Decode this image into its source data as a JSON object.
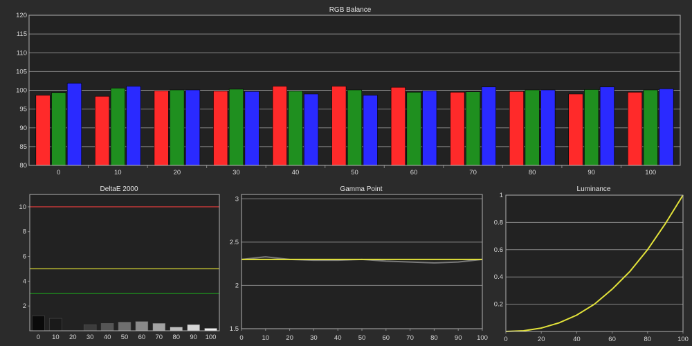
{
  "chart_data": [
    {
      "type": "bar",
      "title": "RGB Balance",
      "categories": [
        "0",
        "10",
        "20",
        "30",
        "40",
        "50",
        "60",
        "70",
        "80",
        "90",
        "100"
      ],
      "ylim": [
        80,
        120
      ],
      "yticks": [
        "80",
        "85",
        "90",
        "95",
        "100",
        "105",
        "110",
        "115",
        "120"
      ],
      "grid": true,
      "series": [
        {
          "color": "#ff2a2a",
          "values": [
            98.7,
            98.4,
            99.9,
            99.8,
            101.1,
            101.1,
            100.8,
            99.5,
            99.7,
            99.0,
            99.5
          ]
        },
        {
          "color": "#1f8f1f",
          "values": [
            99.4,
            100.6,
            100.1,
            100.3,
            99.8,
            100.1,
            99.5,
            99.6,
            100.1,
            100.2,
            100.1
          ]
        },
        {
          "color": "#2a2aff",
          "values": [
            101.9,
            101.1,
            100.1,
            99.7,
            99.0,
            98.7,
            99.9,
            100.9,
            100.1,
            100.9,
            100.4
          ]
        }
      ]
    },
    {
      "type": "bar",
      "title": "DeltaE 2000",
      "categories": [
        "0",
        "10",
        "20",
        "30",
        "40",
        "50",
        "60",
        "70",
        "80",
        "90",
        "100"
      ],
      "ylim": [
        0,
        11
      ],
      "yticks": [
        "2",
        "4",
        "6",
        "8",
        "10"
      ],
      "values": [
        1.2,
        1.0,
        0.0,
        0.5,
        0.6,
        0.7,
        0.75,
        0.6,
        0.3,
        0.5,
        0.2
      ],
      "bar_colors": [
        "#0a0a0a",
        "#1a1a1a",
        "#2a2a2a",
        "#3c3c3c",
        "#555555",
        "#6f6f6f",
        "#8a8a8a",
        "#a3a3a3",
        "#bdbdbd",
        "#d6d6d6",
        "#efefef"
      ],
      "reference_lines": [
        {
          "value": 10,
          "color": "#d23b3b"
        },
        {
          "value": 5,
          "color": "#c8c832"
        },
        {
          "value": 3,
          "color": "#1f8f1f"
        }
      ],
      "grid": false
    },
    {
      "type": "line",
      "title": "Gamma Point",
      "x": [
        0,
        10,
        20,
        30,
        40,
        50,
        60,
        70,
        80,
        90,
        100
      ],
      "xticks": [
        "0",
        "10",
        "20",
        "30",
        "40",
        "50",
        "60",
        "70",
        "80",
        "90",
        "100"
      ],
      "ylim": [
        1.5,
        3.05
      ],
      "yticks": [
        "1.5",
        "2",
        "2.5",
        "3"
      ],
      "grid": true,
      "series": [
        {
          "color": "#7a7a7a",
          "values": [
            2.3,
            2.33,
            2.3,
            2.29,
            2.29,
            2.3,
            2.28,
            2.27,
            2.26,
            2.27,
            2.3
          ]
        },
        {
          "color": "#e3e33a",
          "values": [
            2.3,
            2.3,
            2.3,
            2.3,
            2.3,
            2.3,
            2.3,
            2.3,
            2.3,
            2.3,
            2.3
          ]
        }
      ]
    },
    {
      "type": "line",
      "title": "Luminance",
      "x": [
        0,
        10,
        20,
        30,
        40,
        50,
        60,
        70,
        80,
        90,
        100
      ],
      "xticks": [
        "0",
        "20",
        "40",
        "60",
        "80",
        "100"
      ],
      "ylim": [
        0,
        1
      ],
      "yticks": [
        "0.2",
        "0.4",
        "0.6",
        "0.8",
        "1"
      ],
      "grid": true,
      "series": [
        {
          "color": "#e3e33a",
          "values": [
            0.0,
            0.005,
            0.025,
            0.063,
            0.12,
            0.2,
            0.31,
            0.44,
            0.6,
            0.79,
            1.0
          ]
        }
      ]
    }
  ]
}
